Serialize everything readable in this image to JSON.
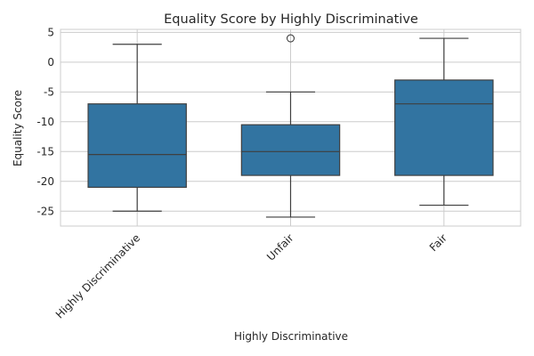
{
  "chart_data": {
    "type": "box",
    "title": "Equality Score by Highly Discriminative",
    "xlabel": "Highly Discriminative",
    "ylabel": "Equality Score",
    "categories": [
      "Highly Discriminative",
      "Unfair",
      "Fair"
    ],
    "boxes": [
      {
        "category": "Highly Discriminative",
        "whisker_low": -25,
        "q1": -21,
        "median": -15.5,
        "q3": -7,
        "whisker_high": 3,
        "outliers": []
      },
      {
        "category": "Unfair",
        "whisker_low": -26,
        "q1": -19,
        "median": -15,
        "q3": -10.5,
        "whisker_high": -5,
        "outliers": [
          4
        ]
      },
      {
        "category": "Fair",
        "whisker_low": -24,
        "q1": -19,
        "median": -7,
        "q3": -3,
        "whisker_high": 4,
        "outliers": []
      }
    ],
    "yticks": [
      5,
      0,
      -5,
      -10,
      -15,
      -20,
      -25
    ],
    "ylim": [
      -27.5,
      5.5
    ],
    "grid": true,
    "colors": {
      "box": "#3274a1",
      "edge": "#3f3f3f",
      "grid": "#cccccc",
      "spine": "#cccccc"
    }
  }
}
